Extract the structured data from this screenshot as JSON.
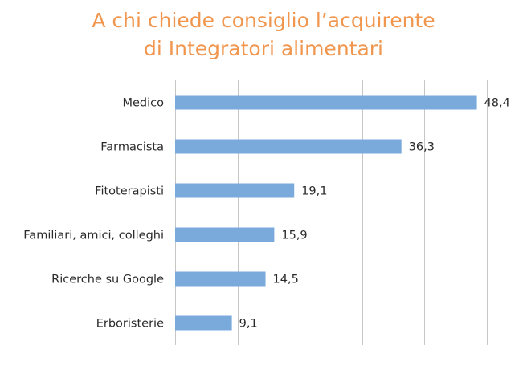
{
  "title_lines": [
    "A chi chiede consiglio l’acquirente",
    "di Integratori alimentari"
  ],
  "colors": {
    "title": "#f0964e",
    "bar": "#7aaadc",
    "grid": "#c6c6c6",
    "text": "#2a2a2a"
  },
  "chart_data": {
    "type": "bar",
    "orientation": "horizontal",
    "title": "A chi chiede consiglio l’acquirente di Integratori alimentari",
    "categories": [
      "Medico",
      "Farmacista",
      "Fitoterapisti",
      "Familiari, amici, colleghi",
      "Ricerche su Google",
      "Erboristerie"
    ],
    "values": [
      48.4,
      36.3,
      19.1,
      15.9,
      14.5,
      9.1
    ],
    "value_labels": [
      "48,4",
      "36,3",
      "19,1",
      "15,9",
      "14,5",
      "9,1"
    ],
    "xlim": [
      0,
      50
    ],
    "grid": true,
    "legend": "none"
  }
}
